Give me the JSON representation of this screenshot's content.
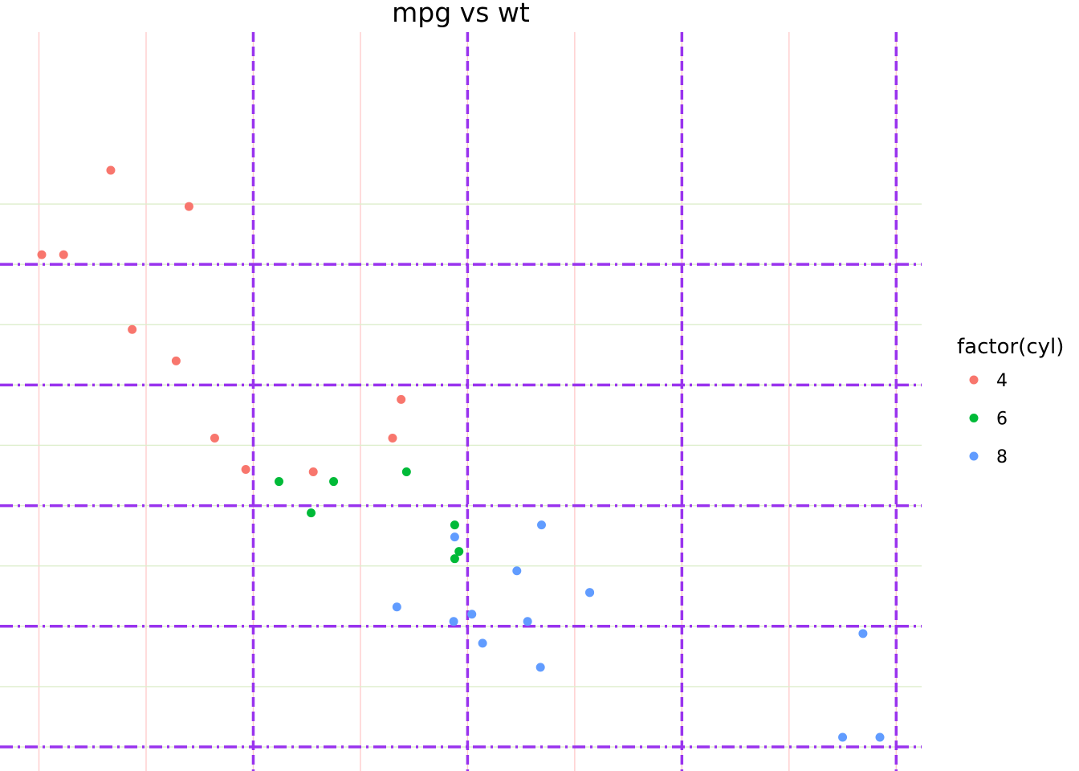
{
  "chart_data": {
    "type": "scatter",
    "title": "mpg vs wt",
    "xlabel": "",
    "ylabel": "",
    "xlim": [
      1.513,
      5.424
    ],
    "ylim": [
      10.4,
      33.9
    ],
    "x_major_breaks": [
      2,
      3,
      4,
      5
    ],
    "x_minor_breaks": [
      1.5,
      2.5,
      3.5,
      4.5,
      5.5
    ],
    "y_major_breaks": [
      10,
      15,
      20,
      25,
      30
    ],
    "y_minor_breaks": [
      12.5,
      17.5,
      22.5,
      27.5,
      32.5
    ],
    "legend": {
      "title": "factor(cyl)",
      "position": "right"
    },
    "series": [
      {
        "name": "4",
        "color": "#F8766D",
        "x": [
          2.32,
          3.19,
          3.15,
          2.2,
          1.615,
          1.835,
          2.465,
          1.935,
          2.14,
          1.513,
          2.78
        ],
        "y": [
          22.8,
          24.4,
          22.8,
          32.4,
          30.4,
          33.9,
          21.5,
          27.3,
          26.0,
          30.4,
          21.4
        ]
      },
      {
        "name": "6",
        "color": "#00BA38",
        "x": [
          2.62,
          2.875,
          3.215,
          3.46,
          3.44,
          3.44,
          2.77
        ],
        "y": [
          21.0,
          21.0,
          21.4,
          18.1,
          19.2,
          17.8,
          19.7
        ]
      },
      {
        "name": "8",
        "color": "#619CFF",
        "x": [
          3.44,
          3.57,
          4.07,
          3.73,
          3.78,
          5.25,
          5.424,
          5.345,
          3.52,
          3.435,
          3.84,
          3.845,
          4.07,
          3.17
        ],
        "y": [
          18.7,
          14.3,
          16.4,
          17.3,
          15.2,
          10.4,
          10.4,
          14.7,
          15.5,
          15.2,
          13.3,
          19.2,
          16.4,
          15.8
        ]
      }
    ],
    "guide_lines": [
      {
        "axis": "x",
        "value": 2.5,
        "color": "#9933EE",
        "style": "dashed"
      },
      {
        "axis": "x",
        "value": 3.5,
        "color": "#9933EE",
        "style": "dashed"
      },
      {
        "axis": "x",
        "value": 4.5,
        "color": "#9933EE",
        "style": "dashed"
      },
      {
        "axis": "x",
        "value": 5.5,
        "color": "#9933EE",
        "style": "dashed"
      },
      {
        "axis": "y",
        "value": 10,
        "color": "#9933EE",
        "style": "dotdash"
      },
      {
        "axis": "y",
        "value": 15,
        "color": "#9933EE",
        "style": "dotdash"
      },
      {
        "axis": "y",
        "value": 20,
        "color": "#9933EE",
        "style": "dotdash"
      },
      {
        "axis": "y",
        "value": 25,
        "color": "#9933EE",
        "style": "dotdash"
      },
      {
        "axis": "y",
        "value": 30,
        "color": "#9933EE",
        "style": "dotdash"
      }
    ],
    "grid": {
      "x_grid_color": "#FFCCCC",
      "y_grid_color": "#DDEECC"
    }
  }
}
